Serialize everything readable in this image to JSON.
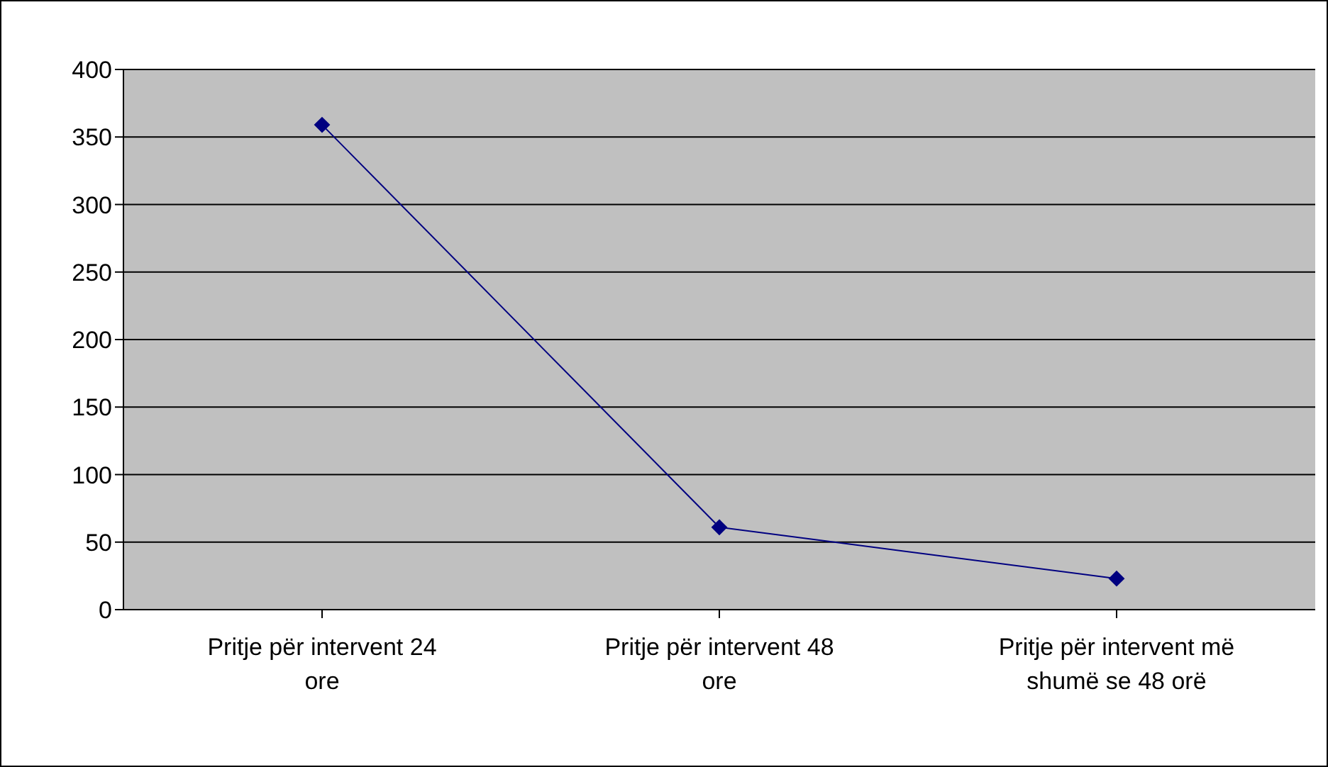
{
  "chart_data": {
    "type": "line",
    "categories": [
      "Pritje për intervent 24 ore",
      "Pritje për intervent 48 ore",
      "Pritje për intervent më shumë se 48 orë"
    ],
    "series": [
      {
        "color": "#000080",
        "values": [
          359,
          61,
          23
        ]
      }
    ],
    "ylim": [
      0,
      400
    ],
    "yticks": [
      0,
      50,
      100,
      150,
      200,
      250,
      300,
      350,
      400
    ],
    "grid": "y",
    "marker": "diamond"
  }
}
